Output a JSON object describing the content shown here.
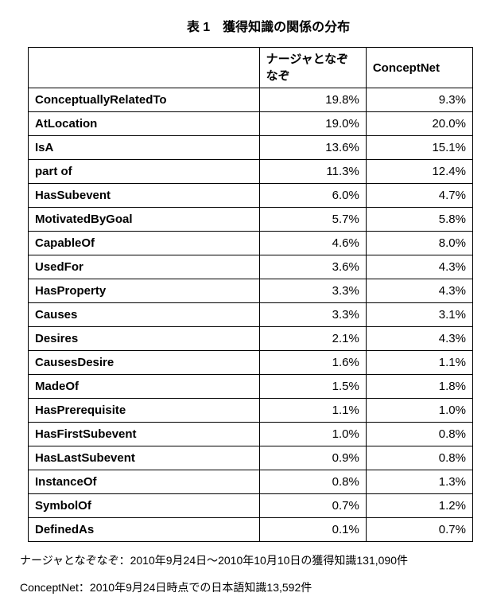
{
  "title": "表 1　獲得知識の関係の分布",
  "columns": {
    "c1": "",
    "c2": "ナージャとなぞなぞ",
    "c3": "ConceptNet"
  },
  "rows": [
    {
      "name": "ConceptuallyRelatedTo",
      "v1": "19.8%",
      "v2": "9.3%"
    },
    {
      "name": "AtLocation",
      "v1": "19.0%",
      "v2": "20.0%"
    },
    {
      "name": "IsA",
      "v1": "13.6%",
      "v2": "15.1%"
    },
    {
      "name": "part of",
      "v1": "11.3%",
      "v2": "12.4%"
    },
    {
      "name": "HasSubevent",
      "v1": "6.0%",
      "v2": "4.7%"
    },
    {
      "name": "MotivatedByGoal",
      "v1": "5.7%",
      "v2": "5.8%"
    },
    {
      "name": "CapableOf",
      "v1": "4.6%",
      "v2": "8.0%"
    },
    {
      "name": "UsedFor",
      "v1": "3.6%",
      "v2": "4.3%"
    },
    {
      "name": "HasProperty",
      "v1": "3.3%",
      "v2": "4.3%"
    },
    {
      "name": "Causes",
      "v1": "3.3%",
      "v2": "3.1%"
    },
    {
      "name": "Desires",
      "v1": "2.1%",
      "v2": "4.3%"
    },
    {
      "name": "CausesDesire",
      "v1": "1.6%",
      "v2": "1.1%"
    },
    {
      "name": "MadeOf",
      "v1": "1.5%",
      "v2": "1.8%"
    },
    {
      "name": "HasPrerequisite",
      "v1": "1.1%",
      "v2": "1.0%"
    },
    {
      "name": "HasFirstSubevent",
      "v1": "1.0%",
      "v2": "0.8%"
    },
    {
      "name": "HasLastSubevent",
      "v1": "0.9%",
      "v2": "0.8%"
    },
    {
      "name": "InstanceOf",
      "v1": "0.8%",
      "v2": "1.3%"
    },
    {
      "name": "SymbolOf",
      "v1": "0.7%",
      "v2": "1.2%"
    },
    {
      "name": "DefinedAs",
      "v1": "0.1%",
      "v2": "0.7%"
    }
  ],
  "footnotes": {
    "f1": "ナージャとなぞなぞ：2010年9月24日～2010年10月10日の獲得知識131,090件",
    "f2": "ConceptNet：2010年9月24日時点での日本語知識13,592件"
  },
  "style": {
    "border_color": "#000000",
    "bg_color": "#ffffff",
    "text_color": "#000000",
    "header_fontsize": 15,
    "cell_fontsize": 15,
    "title_fontsize": 16
  }
}
